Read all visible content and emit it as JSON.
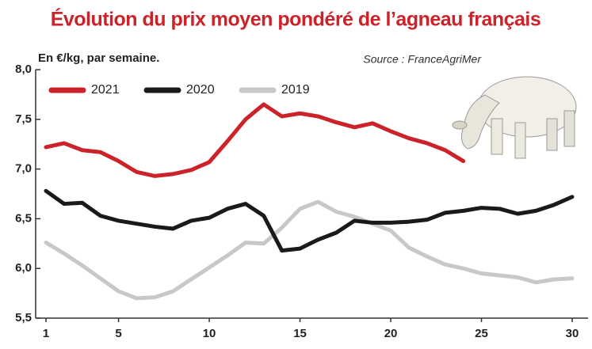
{
  "chart_data": {
    "type": "line",
    "title": "Évolution du prix moyen pondéré de l’agneau français",
    "subtitle": "En €/kg, par semaine.",
    "source": "Source : FranceAgriMer",
    "x": [
      1,
      2,
      3,
      4,
      5,
      6,
      7,
      8,
      9,
      10,
      11,
      12,
      13,
      14,
      15,
      16,
      17,
      18,
      19,
      20,
      21,
      22,
      23,
      24,
      25,
      26,
      27,
      28,
      29,
      30
    ],
    "series": [
      {
        "name": "2021",
        "color": "#cc2229",
        "values": [
          7.22,
          7.26,
          7.19,
          7.17,
          7.08,
          6.97,
          6.93,
          6.95,
          6.99,
          7.07,
          7.28,
          7.5,
          7.65,
          7.53,
          7.56,
          7.53,
          7.47,
          7.42,
          7.46,
          7.38,
          7.31,
          7.26,
          7.19,
          7.08,
          null,
          null,
          null,
          null,
          null,
          null
        ]
      },
      {
        "name": "2020",
        "color": "#1a1a1a",
        "values": [
          6.78,
          6.65,
          6.66,
          6.53,
          6.48,
          6.45,
          6.42,
          6.4,
          6.48,
          6.51,
          6.6,
          6.65,
          6.53,
          6.18,
          6.2,
          6.29,
          6.36,
          6.48,
          6.46,
          6.46,
          6.47,
          6.49,
          6.56,
          6.58,
          6.61,
          6.6,
          6.55,
          6.58,
          6.64,
          6.72
        ]
      },
      {
        "name": "2019",
        "color": "#c8c8c8",
        "values": [
          6.26,
          6.15,
          6.03,
          5.9,
          5.77,
          5.7,
          5.71,
          5.77,
          5.89,
          6.01,
          6.13,
          6.26,
          6.25,
          6.41,
          6.6,
          6.67,
          6.57,
          6.52,
          6.45,
          6.38,
          6.21,
          6.12,
          6.04,
          6.0,
          5.95,
          5.93,
          5.91,
          5.86,
          5.89,
          5.9
        ]
      }
    ],
    "xlim": [
      1,
      30
    ],
    "xticks": [
      1,
      5,
      10,
      15,
      20,
      25,
      30
    ],
    "ylim": [
      5.5,
      8.0
    ],
    "yticks": [
      {
        "value": 5.5,
        "label": "5,5"
      },
      {
        "value": 6.0,
        "label": "6,0"
      },
      {
        "value": 6.5,
        "label": "6,5"
      },
      {
        "value": 7.0,
        "label": "7,0"
      },
      {
        "value": 7.5,
        "label": "7,5"
      },
      {
        "value": 8.0,
        "label": "8,0"
      }
    ]
  }
}
